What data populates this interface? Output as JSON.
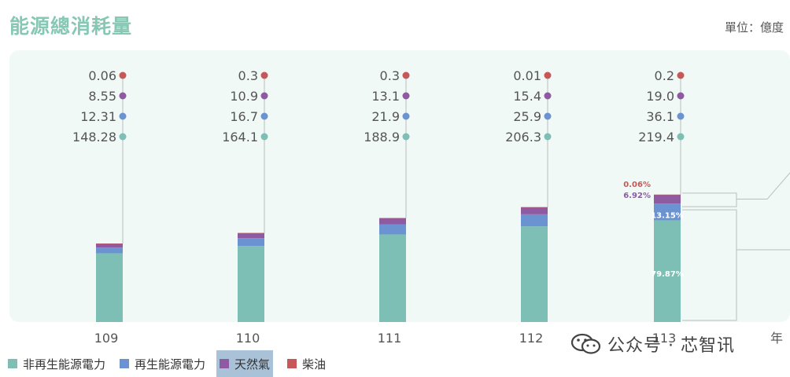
{
  "header": {
    "title": "能源總消耗量",
    "unit": "單位：億度"
  },
  "watermark": {
    "text": "公众号 · 芯智讯",
    "icon": "wechat-icon"
  },
  "colors": {
    "non_renewable": "#7dbfb5",
    "renewable": "#6b93d1",
    "natural_gas": "#8e5ba3",
    "diesel": "#c65858",
    "panel": "#f1f9f6",
    "title": "#86c8b4"
  },
  "chart_data": {
    "type": "bar",
    "stacked": true,
    "title": "能源總消耗量",
    "unit": "單位：億度",
    "categories": [
      "109",
      "110",
      "111",
      "112",
      "113"
    ],
    "axis_suffix": "年",
    "series": [
      {
        "name": "非再生能源電力",
        "color": "#7dbfb5",
        "values": [
          148.28,
          164.1,
          188.9,
          206.3,
          219.4
        ],
        "labels": [
          "148.28",
          "164.1",
          "188.9",
          "206.3",
          "219.4"
        ]
      },
      {
        "name": "再生能源電力",
        "color": "#6b93d1",
        "values": [
          12.31,
          16.7,
          21.9,
          25.9,
          36.1
        ],
        "labels": [
          "12.31",
          "16.7",
          "21.9",
          "25.9",
          "36.1"
        ]
      },
      {
        "name": "天然氣",
        "color": "#8e5ba3",
        "values": [
          8.55,
          10.9,
          13.1,
          15.4,
          19.0
        ],
        "labels": [
          "8.55",
          "10.9",
          "13.1",
          "15.4",
          "19.0"
        ]
      },
      {
        "name": "柴油",
        "color": "#c65858",
        "values": [
          0.06,
          0.3,
          0.3,
          0.01,
          0.2
        ],
        "labels": [
          "0.06",
          "0.3",
          "0.3",
          "0.01",
          "0.2"
        ]
      }
    ],
    "share_labels_113": [
      "79.87%",
      "13.15%",
      "6.92%",
      "0.06%"
    ],
    "legend_position": "bottom-left",
    "grid": false
  }
}
